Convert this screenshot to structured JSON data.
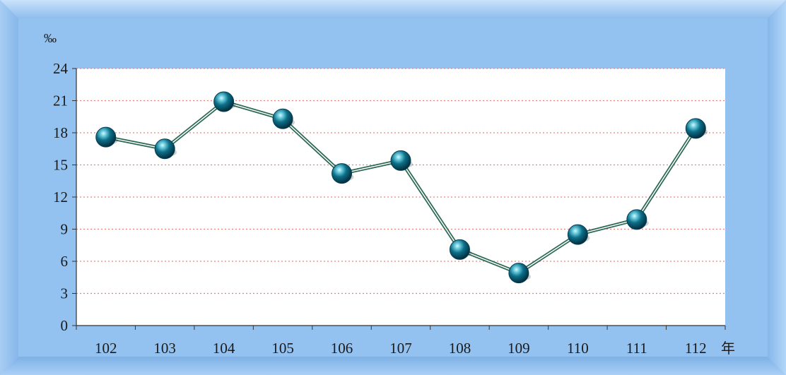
{
  "chart_data": {
    "type": "line",
    "unit_label": "‰",
    "x_unit_label": "年",
    "categories": [
      "102",
      "103",
      "104",
      "105",
      "106",
      "107",
      "108",
      "109",
      "110",
      "111",
      "112"
    ],
    "series": [
      {
        "values": [
          17.6,
          16.5,
          20.9,
          19.3,
          14.2,
          15.4,
          7.1,
          4.9,
          8.5,
          9.9,
          18.4
        ]
      }
    ],
    "ylim": [
      0,
      24
    ],
    "yticks": [
      "0",
      "3",
      "6",
      "9",
      "12",
      "15",
      "18",
      "21",
      "24"
    ],
    "grid": true,
    "legend": "none"
  },
  "colors": {
    "frame_outer": "#8ab8ea",
    "frame_inner": "#b5d6f7",
    "grid_line": "#e98080",
    "series_line": "#2d6a55",
    "marker_dark": "#063d52",
    "marker_mid": "#0b6e86",
    "marker_light": "#8fe0ee"
  }
}
